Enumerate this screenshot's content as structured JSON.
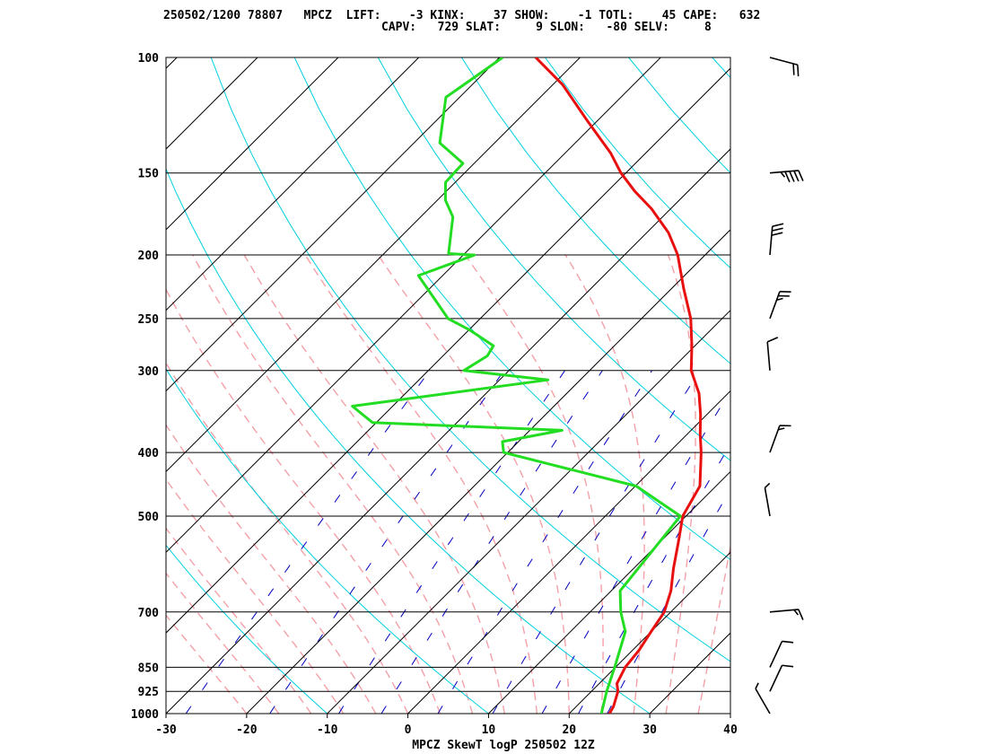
{
  "header": {
    "line1": "250502/1200 78807   MPCZ  LIFT:    -3 KINX:    37 SHOW:    -1 TOTL:    45 CAPE:   632",
    "line2": "CAPV:   729 SLAT:     9 SLON:   -80 SELV:     8"
  },
  "chart_data": {
    "type": "line",
    "title": "MPCZ SkewT logP 250502 12Z",
    "xlabel": "",
    "ylabel": "",
    "x_ticks": [
      "-30",
      "-20",
      "-10",
      "0",
      "10",
      "20",
      "30",
      "40"
    ],
    "p_levels": [
      100,
      150,
      200,
      250,
      300,
      400,
      500,
      700,
      850,
      925,
      1000
    ],
    "p_tick_labels": [
      "100",
      "150",
      "200",
      "250",
      "300",
      "400",
      "500",
      "700",
      "850",
      "925",
      "1000"
    ],
    "xlim": [
      -30,
      40
    ],
    "ylim_hpa": [
      1000,
      100
    ],
    "y_scale": "log",
    "grid": true,
    "series": [
      {
        "color": "#e8100e",
        "points": [
          [
            1000,
            25.0
          ],
          [
            975,
            24.6
          ],
          [
            925,
            23.3
          ],
          [
            900,
            22.2
          ],
          [
            850,
            21.2
          ],
          [
            800,
            20.8
          ],
          [
            750,
            20.0
          ],
          [
            700,
            19.2
          ],
          [
            650,
            17.4
          ],
          [
            600,
            14.9
          ],
          [
            550,
            12.4
          ],
          [
            500,
            9.6
          ],
          [
            450,
            8.0
          ],
          [
            400,
            4.0
          ],
          [
            375,
            1.6
          ],
          [
            350,
            -0.8
          ],
          [
            325,
            -3.6
          ],
          [
            300,
            -7.4
          ],
          [
            275,
            -10.4
          ],
          [
            250,
            -13.9
          ],
          [
            225,
            -18.5
          ],
          [
            200,
            -23.4
          ],
          [
            185,
            -27.3
          ],
          [
            170,
            -32.4
          ],
          [
            160,
            -36.6
          ],
          [
            150,
            -40.6
          ],
          [
            140,
            -44.3
          ],
          [
            125,
            -51.2
          ],
          [
            110,
            -58.8
          ],
          [
            100,
            -65.5
          ]
        ]
      },
      {
        "color": "#22dd22",
        "points": [
          [
            1000,
            24.0
          ],
          [
            925,
            21.9
          ],
          [
            850,
            19.9
          ],
          [
            750,
            16.8
          ],
          [
            700,
            13.8
          ],
          [
            650,
            11.1
          ],
          [
            500,
            9.3
          ],
          [
            450,
            0.1
          ],
          [
            400,
            -20.5
          ],
          [
            385,
            -22.0
          ],
          [
            370,
            -16.0
          ],
          [
            360,
            -40.5
          ],
          [
            340,
            -45.0
          ],
          [
            310,
            -24.0
          ],
          [
            300,
            -35.6
          ],
          [
            285,
            -34.5
          ],
          [
            275,
            -35.0
          ],
          [
            260,
            -40.0
          ],
          [
            250,
            -44.0
          ],
          [
            215,
            -53.0
          ],
          [
            200,
            -48.6
          ],
          [
            199,
            -52.0
          ],
          [
            175,
            -56.0
          ],
          [
            165,
            -59.0
          ],
          [
            155,
            -61.2
          ],
          [
            145,
            -61.4
          ],
          [
            135,
            -66.8
          ],
          [
            115,
            -71.7
          ],
          [
            100,
            -69.6
          ]
        ]
      }
    ],
    "wind_barbs": [
      {
        "p": 1000,
        "dir": 330,
        "kt": 5
      },
      {
        "p": 925,
        "dir": 25,
        "kt": 10
      },
      {
        "p": 850,
        "dir": 25,
        "kt": 10
      },
      {
        "p": 700,
        "dir": 85,
        "kt": 15
      },
      {
        "p": 500,
        "dir": 350,
        "kt": 5
      },
      {
        "p": 400,
        "dir": 20,
        "kt": 15
      },
      {
        "p": 300,
        "dir": 355,
        "kt": 10
      },
      {
        "p": 250,
        "dir": 20,
        "kt": 25
      },
      {
        "p": 200,
        "dir": 5,
        "kt": 30
      },
      {
        "p": 150,
        "dir": 85,
        "kt": 45
      },
      {
        "p": 100,
        "dir": 105,
        "kt": 20
      }
    ],
    "colors": {
      "temperature": "#e8100e",
      "dewpoint": "#22dd22",
      "isotherm": "#000000",
      "isobar": "#000000",
      "dry_adiabat": "#00d0e0",
      "moist_adiabat": "#f4a0a8",
      "mixing_ratio": "#0000c0",
      "wind_barb": "#000000"
    }
  }
}
